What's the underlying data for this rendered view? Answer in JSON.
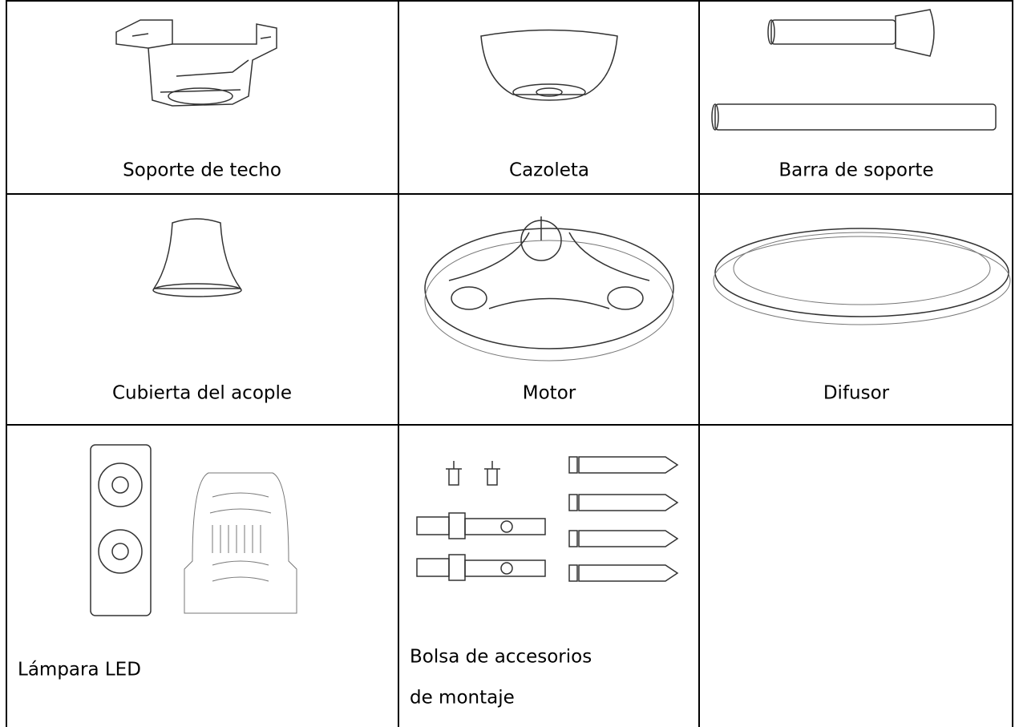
{
  "table": {
    "rows": [
      [
        "Soporte de techo",
        "Cazoleta",
        "Barra de soporte"
      ],
      [
        "Cubierta del acople",
        "Motor",
        "Difusor"
      ],
      [
        "Lámpara LED",
        [
          "Bolsa de accesorios",
          "de montaje"
        ]
      ]
    ]
  }
}
